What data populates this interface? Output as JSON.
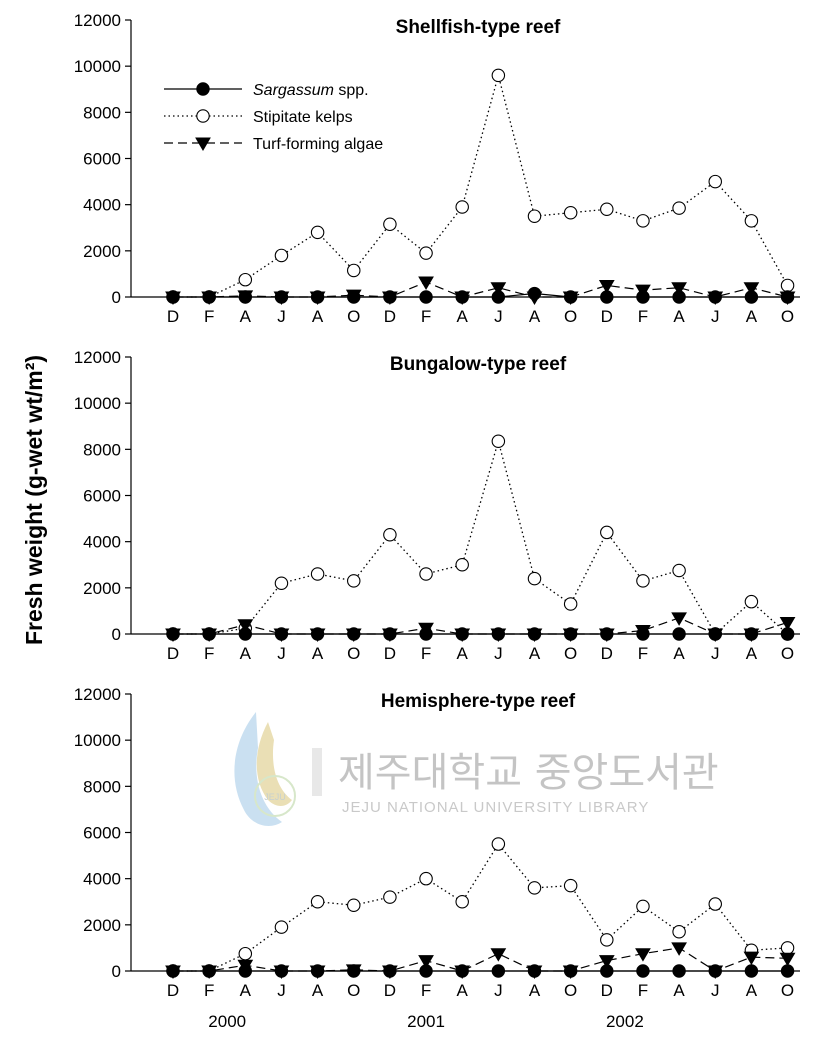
{
  "ylabel": "Fresh weight (g-wet wt/m²)",
  "legend": {
    "placement": "top-left of first panel",
    "entries": [
      {
        "series": "sargassum",
        "italic": "Sargassum",
        "rest": " spp."
      },
      {
        "series": "kelps",
        "italic": "",
        "rest": "Stipitate kelps"
      },
      {
        "series": "turf",
        "italic": "",
        "rest": "Turf-forming algae"
      }
    ]
  },
  "years": [
    {
      "label": "2000",
      "under_index": 1.5
    },
    {
      "label": "2001",
      "under_index": 7
    },
    {
      "label": "2002",
      "under_index": 12.5
    }
  ],
  "watermark": {
    "korean": "제주대학교 중앙도서관",
    "english": "JEJU NATIONAL UNIVERSITY  LIBRARY",
    "logo_text": "JEJU"
  },
  "chart_data": [
    {
      "type": "line",
      "title": "Shellfish-type reef",
      "categories": [
        "D",
        "F",
        "A",
        "J",
        "A",
        "O",
        "D",
        "F",
        "A",
        "J",
        "A",
        "O",
        "D",
        "F",
        "A",
        "J",
        "A",
        "O"
      ],
      "ylim": [
        0,
        12000
      ],
      "yticks": [
        "0",
        "2000",
        "4000",
        "6000",
        "8000",
        "10000",
        "12000"
      ],
      "grid": false,
      "series": [
        {
          "name": "Sargassum spp.",
          "marker": "filled-circle",
          "line": "solid",
          "values": [
            0,
            0,
            0,
            0,
            0,
            0,
            0,
            0,
            0,
            0,
            150,
            0,
            0,
            0,
            0,
            0,
            0,
            0
          ]
        },
        {
          "name": "Stipitate kelps",
          "marker": "open-circle",
          "line": "dotted",
          "values": [
            0,
            0,
            750,
            1800,
            2800,
            1150,
            3150,
            1900,
            3900,
            9600,
            3500,
            3650,
            3800,
            3300,
            3850,
            5000,
            3300,
            500
          ]
        },
        {
          "name": "Turf-forming algae",
          "marker": "filled-triangle-down",
          "line": "dashed",
          "values": [
            0,
            0,
            50,
            0,
            0,
            80,
            0,
            650,
            0,
            400,
            0,
            0,
            500,
            300,
            400,
            0,
            400,
            0
          ]
        }
      ]
    },
    {
      "type": "line",
      "title": "Bungalow-type reef",
      "categories": [
        "D",
        "F",
        "A",
        "J",
        "A",
        "O",
        "D",
        "F",
        "A",
        "J",
        "A",
        "O",
        "D",
        "F",
        "A",
        "J",
        "A",
        "O"
      ],
      "ylim": [
        0,
        12000
      ],
      "yticks": [
        "0",
        "2000",
        "4000",
        "6000",
        "8000",
        "10000",
        "12000"
      ],
      "grid": false,
      "series": [
        {
          "name": "Sargassum spp.",
          "marker": "filled-circle",
          "line": "solid",
          "values": [
            0,
            0,
            0,
            0,
            0,
            0,
            0,
            0,
            0,
            0,
            0,
            0,
            0,
            0,
            0,
            0,
            0,
            0
          ]
        },
        {
          "name": "Stipitate kelps",
          "marker": "open-circle",
          "line": "dotted",
          "values": [
            0,
            0,
            250,
            2200,
            2600,
            2300,
            4300,
            2600,
            3000,
            8350,
            2400,
            1300,
            4400,
            2300,
            2750,
            0,
            1400,
            0
          ]
        },
        {
          "name": "Turf-forming algae",
          "marker": "filled-triangle-down",
          "line": "dashed",
          "values": [
            0,
            0,
            400,
            0,
            0,
            0,
            0,
            250,
            0,
            0,
            0,
            0,
            0,
            150,
            700,
            0,
            0,
            500
          ]
        }
      ]
    },
    {
      "type": "line",
      "title": "Hemisphere-type reef",
      "categories": [
        "D",
        "F",
        "A",
        "J",
        "A",
        "O",
        "D",
        "F",
        "A",
        "J",
        "A",
        "O",
        "D",
        "F",
        "A",
        "J",
        "A",
        "O"
      ],
      "ylim": [
        0,
        12000
      ],
      "yticks": [
        "0",
        "2000",
        "4000",
        "6000",
        "8000",
        "10000",
        "12000"
      ],
      "grid": false,
      "series": [
        {
          "name": "Sargassum spp.",
          "marker": "filled-circle",
          "line": "solid",
          "values": [
            0,
            0,
            0,
            0,
            0,
            0,
            0,
            0,
            0,
            0,
            0,
            0,
            0,
            0,
            0,
            0,
            0,
            0
          ]
        },
        {
          "name": "Stipitate kelps",
          "marker": "open-circle",
          "line": "dotted",
          "values": [
            0,
            0,
            750,
            1900,
            3000,
            2850,
            3200,
            4000,
            3000,
            5500,
            3600,
            3700,
            1350,
            2800,
            1700,
            2900,
            900,
            1000
          ]
        },
        {
          "name": "Turf-forming algae",
          "marker": "filled-triangle-down",
          "line": "dashed",
          "values": [
            0,
            0,
            250,
            0,
            0,
            50,
            0,
            450,
            0,
            750,
            0,
            0,
            450,
            750,
            1000,
            0,
            600,
            550
          ]
        }
      ]
    }
  ]
}
